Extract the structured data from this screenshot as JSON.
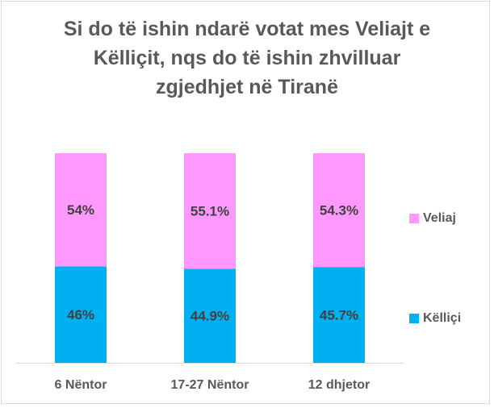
{
  "chart_data": {
    "type": "bar",
    "stacked": true,
    "title": "Si do të ishin ndarë votat mes Veliajt e Këlliçit, nqs do të ishin zhvilluar zgjedhjet në Tiranë",
    "title_lines": [
      "Si do të ishin ndarë votat mes Veliajt e",
      "Këlliçit, nqs do të ishin zhvilluar",
      "zgjedhjet në Tiranë"
    ],
    "categories": [
      "6 Nëntor",
      "17-27 Nëntor",
      "12 dhjetor"
    ],
    "series": [
      {
        "name": "Këlliçi",
        "values": [
          46,
          44.9,
          45.7
        ],
        "labels": [
          "46%",
          "44.9%",
          "45.7%"
        ],
        "color": "#00b0f0"
      },
      {
        "name": "Veliaj",
        "values": [
          54,
          55.1,
          54.3
        ],
        "labels": [
          "54%",
          "55.1%",
          "54.3%"
        ],
        "color": "#ff99ff"
      }
    ],
    "ylim": [
      0,
      100
    ],
    "grid": false,
    "legend": "right",
    "label_color": "#404040",
    "axis_color": "#d9d9d9"
  }
}
